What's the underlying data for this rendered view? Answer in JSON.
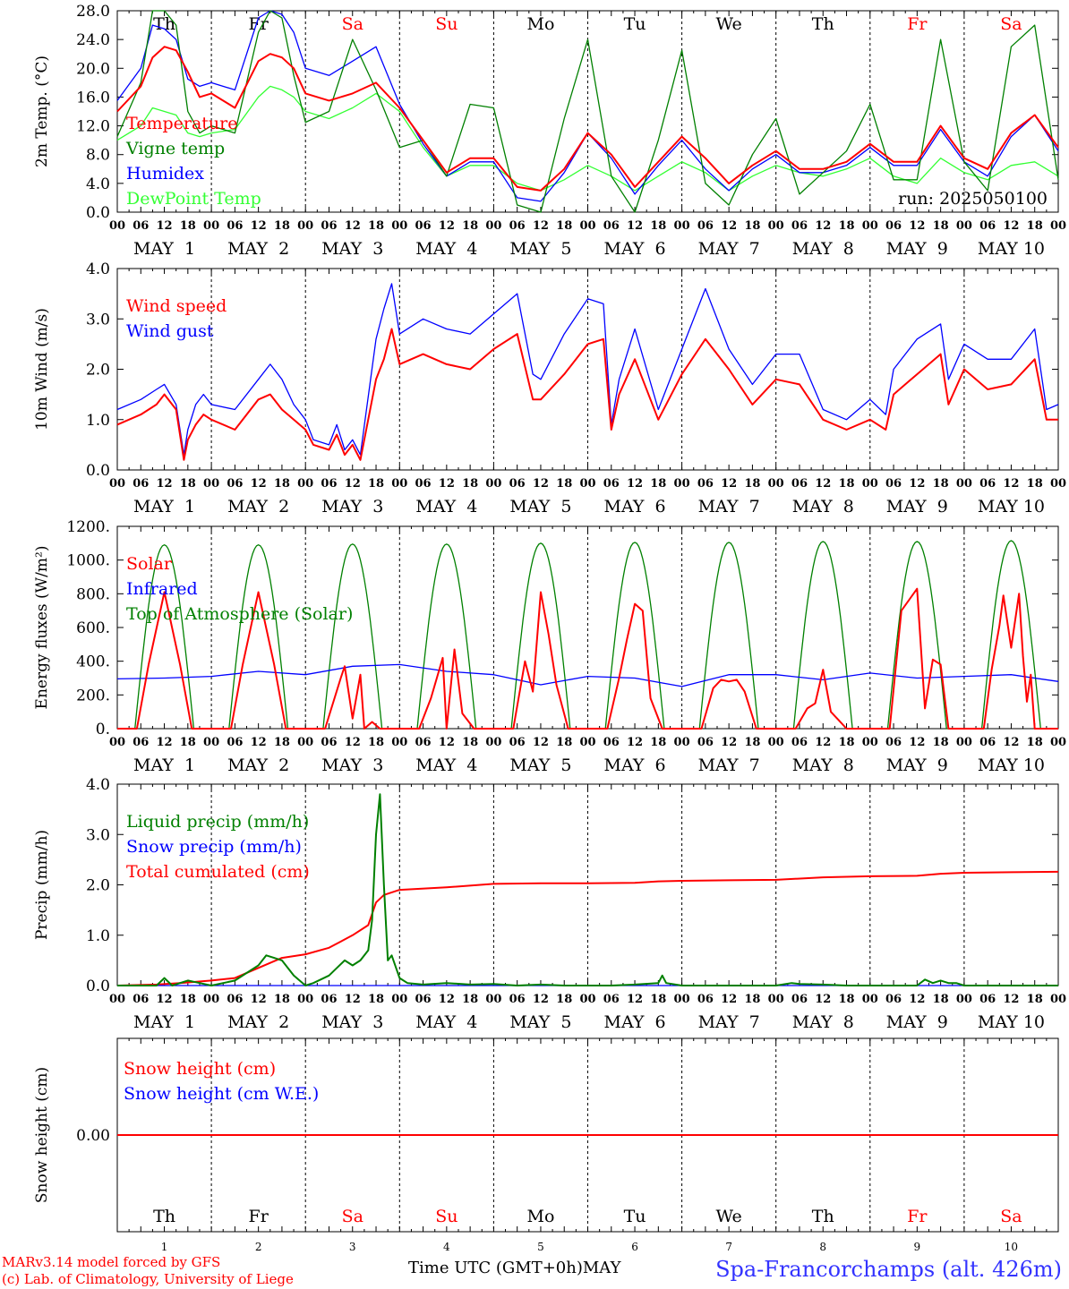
{
  "colors": {
    "red": "#ff0000",
    "green": "#008000",
    "blue": "#0000ff",
    "light_green": "#33ff33",
    "weekend": "#ff0000",
    "weekday": "#000000"
  },
  "days": {
    "weekday_letters": [
      "Th",
      "Fr",
      "Sa",
      "Su",
      "Mo",
      "Tu",
      "We",
      "Th",
      "Fr",
      "Sa"
    ],
    "weekend_flags": [
      false,
      false,
      true,
      true,
      false,
      false,
      false,
      false,
      true,
      true
    ],
    "date_labels": [
      "MAY  1",
      "MAY  2",
      "MAY  3",
      "MAY  4",
      "MAY  5",
      "MAY  6",
      "MAY  7",
      "MAY  8",
      "MAY  9",
      "MAY 10"
    ],
    "day_numbers": [
      "1",
      "2",
      "3",
      "4",
      "5",
      "6",
      "7",
      "8",
      "9",
      "10"
    ],
    "hour_ticks": [
      "00",
      "06",
      "12",
      "18"
    ],
    "final_hour": "00"
  },
  "chart_data": [
    {
      "type": "line",
      "ylabel": "2m Temp. (°C)",
      "ylim": [
        0,
        28
      ],
      "yticks": [
        "0.0",
        "4.0",
        "8.0",
        "12.0",
        "16.0",
        "20.0",
        "24.0",
        "28.0"
      ],
      "annotation": "run: 2025050100",
      "x": [
        0,
        6,
        9,
        12,
        15,
        18,
        21,
        24,
        30,
        36,
        39,
        42,
        45,
        48,
        54,
        60,
        66,
        72,
        78,
        84,
        90,
        96,
        102,
        108,
        114,
        120,
        126,
        132,
        138,
        144,
        150,
        156,
        162,
        168,
        174,
        180,
        186,
        192,
        198,
        204,
        210,
        216,
        222,
        228,
        234,
        240
      ],
      "series": [
        {
          "name": "Temperature",
          "color": "#ff0000",
          "values": [
            14.0,
            17.5,
            21.5,
            23.0,
            22.5,
            19.5,
            16.0,
            16.5,
            14.5,
            21.0,
            22.0,
            21.5,
            20.0,
            16.5,
            15.5,
            16.5,
            18.0,
            14.5,
            10.0,
            5.5,
            7.5,
            7.5,
            3.5,
            3.0,
            6.0,
            11.0,
            8.0,
            3.5,
            7.0,
            10.5,
            7.5,
            4.0,
            6.5,
            8.5,
            6.0,
            6.0,
            7.0,
            9.5,
            7.0,
            7.0,
            12.0,
            7.5,
            6.0,
            11.0,
            13.5,
            9.0
          ]
        },
        {
          "name": "Vigne temp",
          "color": "#008000",
          "values": [
            10.5,
            18.0,
            28.0,
            28.0,
            26.0,
            14.0,
            11.0,
            12.0,
            11.0,
            25.0,
            28.0,
            27.0,
            19.0,
            12.5,
            14.0,
            24.0,
            17.0,
            9.0,
            10.0,
            5.0,
            15.0,
            14.5,
            1.0,
            0.0,
            13.0,
            24.0,
            5.0,
            0.0,
            10.0,
            22.5,
            4.0,
            1.0,
            8.0,
            13.0,
            2.5,
            5.5,
            8.5,
            15.0,
            4.5,
            4.5,
            24.0,
            7.0,
            3.0,
            23.0,
            26.0,
            4.5
          ]
        },
        {
          "name": "Humidex",
          "color": "#0000ff",
          "values": [
            15.5,
            20.0,
            26.0,
            25.5,
            24.0,
            18.5,
            17.5,
            18.0,
            17.0,
            27.0,
            28.0,
            27.5,
            25.0,
            20.0,
            19.0,
            21.0,
            23.0,
            15.0,
            9.5,
            5.0,
            7.0,
            7.0,
            2.0,
            1.5,
            5.5,
            11.0,
            7.5,
            2.5,
            6.5,
            10.0,
            6.0,
            3.0,
            6.0,
            8.0,
            5.5,
            5.5,
            6.5,
            9.0,
            6.5,
            6.5,
            11.5,
            7.0,
            5.0,
            10.5,
            13.5,
            8.5
          ]
        },
        {
          "name": "DewPoint Temp",
          "color": "#33ff33",
          "values": [
            10.0,
            12.0,
            14.5,
            14.0,
            13.5,
            11.0,
            10.5,
            11.0,
            11.5,
            16.0,
            17.5,
            17.0,
            16.0,
            14.0,
            13.0,
            14.5,
            16.5,
            14.0,
            9.0,
            5.0,
            6.5,
            6.5,
            4.0,
            3.0,
            4.5,
            6.5,
            5.0,
            3.0,
            5.0,
            7.0,
            5.5,
            3.0,
            5.0,
            6.5,
            5.5,
            5.0,
            6.0,
            7.5,
            5.0,
            4.0,
            7.5,
            5.5,
            4.5,
            6.5,
            7.0,
            5.0
          ]
        }
      ]
    },
    {
      "type": "line",
      "ylabel": "10m Wind (m/s)",
      "ylim": [
        0,
        4
      ],
      "yticks": [
        "0.0",
        "1.0",
        "2.0",
        "3.0",
        "4.0"
      ],
      "x": [
        0,
        6,
        10,
        12,
        15,
        17,
        18,
        20,
        22,
        24,
        30,
        36,
        39,
        42,
        45,
        48,
        50,
        54,
        56,
        58,
        60,
        62,
        66,
        68,
        70,
        72,
        78,
        84,
        90,
        96,
        102,
        106,
        108,
        114,
        120,
        124,
        126,
        128,
        132,
        138,
        144,
        150,
        156,
        162,
        168,
        174,
        180,
        186,
        192,
        196,
        198,
        204,
        210,
        212,
        216,
        222,
        228,
        234,
        237,
        240
      ],
      "series": [
        {
          "name": "Wind speed",
          "color": "#ff0000",
          "values": [
            0.9,
            1.1,
            1.3,
            1.5,
            1.2,
            0.2,
            0.6,
            0.9,
            1.1,
            1.0,
            0.8,
            1.4,
            1.5,
            1.2,
            1.0,
            0.8,
            0.5,
            0.4,
            0.7,
            0.3,
            0.5,
            0.2,
            1.8,
            2.2,
            2.8,
            2.1,
            2.3,
            2.1,
            2.0,
            2.4,
            2.7,
            1.4,
            1.4,
            1.9,
            2.5,
            2.6,
            0.8,
            1.5,
            2.2,
            1.0,
            1.9,
            2.6,
            2.0,
            1.3,
            1.8,
            1.7,
            1.0,
            0.8,
            1.0,
            0.8,
            1.5,
            1.9,
            2.3,
            1.3,
            2.0,
            1.6,
            1.7,
            2.2,
            1.0,
            1.0
          ]
        },
        {
          "name": "Wind gust",
          "color": "#0000ff",
          "values": [
            1.2,
            1.4,
            1.6,
            1.7,
            1.3,
            0.3,
            0.8,
            1.3,
            1.5,
            1.3,
            1.2,
            1.8,
            2.1,
            1.8,
            1.3,
            1.0,
            0.6,
            0.5,
            0.9,
            0.4,
            0.6,
            0.3,
            2.6,
            3.2,
            3.7,
            2.7,
            3.0,
            2.8,
            2.7,
            3.1,
            3.5,
            1.9,
            1.8,
            2.7,
            3.4,
            3.3,
            0.9,
            1.8,
            2.8,
            1.2,
            2.4,
            3.6,
            2.4,
            1.7,
            2.3,
            2.3,
            1.2,
            1.0,
            1.4,
            1.1,
            2.0,
            2.6,
            2.9,
            1.8,
            2.5,
            2.2,
            2.2,
            2.8,
            1.2,
            1.3
          ]
        }
      ]
    },
    {
      "type": "line",
      "ylabel": "Energy fluxes (W/m²)",
      "ylim": [
        0,
        1200
      ],
      "yticks": [
        "0.",
        "200.",
        "400.",
        "600.",
        "800.",
        "1000.",
        "1200."
      ],
      "x": [
        0,
        12,
        24,
        36,
        48,
        60,
        72,
        84,
        96,
        108,
        120,
        132,
        144,
        156,
        168,
        180,
        192,
        204,
        216,
        228,
        240
      ],
      "series": [
        {
          "name": "Solar",
          "color": "#ff0000",
          "x": [
            0,
            5,
            8,
            12,
            16,
            19,
            24,
            29,
            32,
            36,
            40,
            43,
            48,
            53,
            57,
            58,
            60,
            62,
            63,
            65,
            67,
            72,
            77,
            80,
            83,
            84,
            86,
            88,
            91,
            96,
            101,
            104,
            106,
            108,
            110,
            112,
            115,
            120,
            125,
            128,
            130,
            132,
            134,
            136,
            139,
            144,
            149,
            152,
            154,
            156,
            158,
            160,
            163,
            168,
            173,
            176,
            178,
            180,
            182,
            184,
            186,
            188,
            192,
            197,
            200,
            204,
            206,
            208,
            210,
            212,
            216,
            221,
            223,
            225,
            226,
            228,
            230,
            231,
            232,
            233,
            234,
            237,
            240
          ],
          "values": [
            0,
            0,
            380,
            810,
            380,
            0,
            0,
            0,
            380,
            810,
            380,
            0,
            0,
            0,
            300,
            370,
            60,
            320,
            0,
            40,
            0,
            0,
            0,
            180,
            420,
            0,
            470,
            90,
            0,
            0,
            0,
            400,
            220,
            810,
            560,
            260,
            0,
            0,
            0,
            300,
            530,
            740,
            700,
            180,
            0,
            0,
            0,
            240,
            290,
            280,
            290,
            220,
            0,
            0,
            0,
            120,
            150,
            350,
            100,
            50,
            0,
            0,
            0,
            0,
            700,
            830,
            120,
            410,
            380,
            0,
            0,
            0,
            350,
            610,
            790,
            480,
            800,
            430,
            160,
            320,
            0,
            0,
            0
          ]
        },
        {
          "name": "Infrared",
          "color": "#0000ff",
          "values": [
            295,
            300,
            310,
            340,
            320,
            370,
            380,
            340,
            320,
            260,
            310,
            300,
            250,
            320,
            320,
            290,
            330,
            300,
            310,
            320,
            280
          ]
        },
        {
          "name": "Top of Atmosphere (Solar)",
          "color": "#008000",
          "curve": "daily-sine",
          "values": [
            0,
            1090,
            0,
            1090,
            0,
            1095,
            0,
            1095,
            0,
            1100,
            0,
            1105,
            0,
            1105,
            0,
            1110,
            0,
            1110,
            0,
            1115,
            0
          ]
        }
      ]
    },
    {
      "type": "line",
      "ylabel": "Precip (mm/h)",
      "ylim": [
        0,
        4
      ],
      "yticks": [
        "0.0",
        "1.0",
        "2.0",
        "3.0",
        "4.0"
      ],
      "series": [
        {
          "name": "Liquid precip (mm/h)",
          "color": "#008000",
          "x": [
            0,
            10,
            12,
            14,
            18,
            21,
            24,
            30,
            36,
            38,
            40,
            42,
            45,
            48,
            50,
            54,
            58,
            60,
            62,
            64,
            65,
            66,
            67,
            68,
            69,
            70,
            72,
            74,
            78,
            84,
            90,
            96,
            102,
            108,
            114,
            120,
            126,
            132,
            138,
            139,
            140,
            144,
            150,
            156,
            162,
            168,
            172,
            174,
            180,
            186,
            192,
            198,
            204,
            206,
            208,
            210,
            212,
            214,
            216,
            222,
            228,
            234,
            240
          ],
          "values": [
            0,
            0,
            0.15,
            0,
            0.1,
            0.05,
            0,
            0.1,
            0.4,
            0.6,
            0.55,
            0.5,
            0.2,
            0,
            0.05,
            0.2,
            0.5,
            0.4,
            0.5,
            0.7,
            1.3,
            3.0,
            3.8,
            2.0,
            0.5,
            0.6,
            0.15,
            0.05,
            0.02,
            0.05,
            0.02,
            0.03,
            0,
            0.02,
            0,
            0,
            0,
            0.02,
            0.05,
            0.2,
            0.05,
            0,
            0,
            0,
            0,
            0,
            0.05,
            0.03,
            0.02,
            0,
            0,
            0,
            0,
            0.12,
            0.05,
            0.1,
            0.05,
            0.05,
            0,
            0,
            0,
            0,
            0
          ]
        },
        {
          "name": "Snow precip (mm/h)",
          "color": "#0000ff",
          "x": [
            0,
            240
          ],
          "values": [
            0,
            0
          ]
        },
        {
          "name": "Total cumulated (cm)",
          "color": "#ff0000",
          "x": [
            0,
            10,
            16,
            24,
            30,
            36,
            42,
            48,
            54,
            60,
            64,
            66,
            68,
            72,
            84,
            96,
            108,
            120,
            132,
            138,
            144,
            156,
            168,
            180,
            192,
            204,
            210,
            216,
            228,
            240
          ],
          "values": [
            0,
            0.02,
            0.05,
            0.1,
            0.15,
            0.35,
            0.55,
            0.62,
            0.75,
            1.0,
            1.2,
            1.65,
            1.8,
            1.9,
            1.95,
            2.02,
            2.03,
            2.03,
            2.04,
            2.07,
            2.08,
            2.09,
            2.1,
            2.15,
            2.17,
            2.18,
            2.22,
            2.24,
            2.25,
            2.26
          ]
        }
      ]
    },
    {
      "type": "line",
      "ylabel": "Snow height (cm)",
      "ylim": [
        -1,
        1
      ],
      "yticks": [
        "0.00"
      ],
      "x": [
        0,
        240
      ],
      "series": [
        {
          "name": "Snow height (cm)",
          "color": "#ff0000",
          "values": [
            0,
            0
          ]
        },
        {
          "name": "Snow height (cm W.E.)",
          "color": "#0000ff",
          "values": [
            0,
            0
          ]
        }
      ]
    }
  ],
  "footer": {
    "credit_line1": "MARv3.14 model forced by GFS",
    "credit_line2": "(c) Lab. of Climatology, University of Liege",
    "x_title": "Time UTC (GMT+0h)",
    "x_month": "MAY",
    "station": "Spa-Francorchamps (alt. 426m)"
  }
}
